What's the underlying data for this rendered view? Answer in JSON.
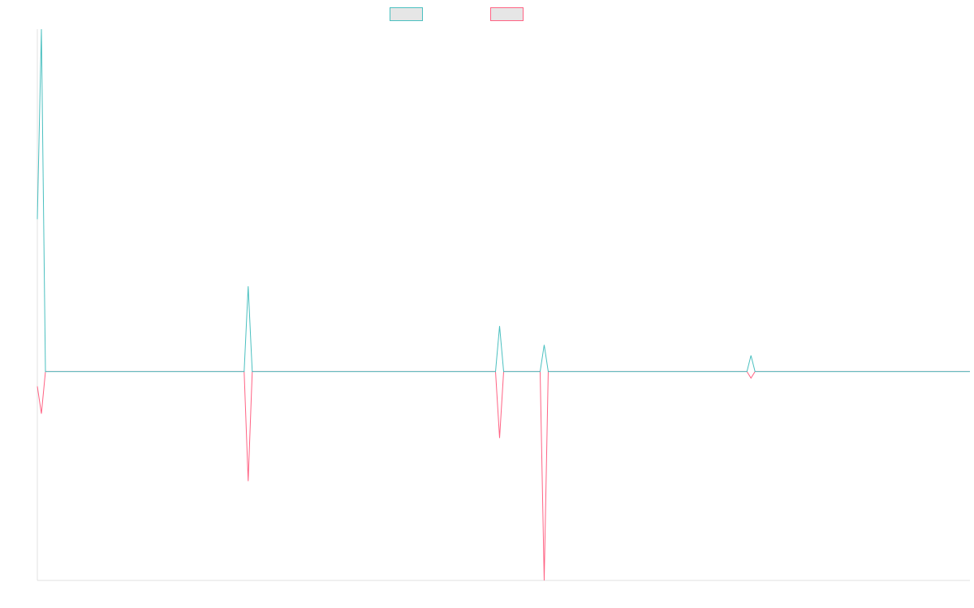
{
  "chart_data": {
    "type": "line",
    "ylim": [
      -0.61,
      1
    ],
    "series": [
      {
        "color": "#4bc0c0",
        "values": [
          0.445,
          1,
          0,
          0,
          0,
          0,
          0,
          0,
          0,
          0,
          0,
          0,
          0,
          0,
          0,
          0,
          0,
          0,
          0,
          0,
          0,
          0,
          0,
          0,
          0,
          0,
          0,
          0,
          0,
          0,
          0,
          0,
          0,
          0,
          0,
          0,
          0,
          0,
          0,
          0,
          0,
          0,
          0,
          0,
          0,
          0,
          0,
          0,
          0,
          0,
          0,
          0,
          0.249,
          0,
          0,
          0,
          0,
          0,
          0,
          0,
          0,
          0,
          0,
          0,
          0,
          0,
          0,
          0,
          0,
          0,
          0,
          0,
          0,
          0,
          0,
          0,
          0,
          0,
          0,
          0,
          0,
          0,
          0,
          0,
          0,
          0,
          0,
          0,
          0,
          0,
          0,
          0,
          0,
          0,
          0,
          0,
          0,
          0,
          0,
          0,
          0,
          0,
          0,
          0,
          0,
          0,
          0,
          0,
          0,
          0,
          0,
          0,
          0,
          0,
          0.133,
          0,
          0,
          0,
          0,
          0,
          0,
          0,
          0,
          0,
          0,
          0.078,
          0,
          0,
          0,
          0,
          0,
          0,
          0,
          0,
          0,
          0,
          0,
          0,
          0,
          0,
          0,
          0,
          0,
          0,
          0,
          0,
          0,
          0,
          0,
          0,
          0,
          0,
          0,
          0,
          0,
          0,
          0,
          0,
          0,
          0,
          0,
          0,
          0,
          0,
          0,
          0,
          0,
          0,
          0,
          0,
          0,
          0,
          0,
          0,
          0,
          0,
          0.047,
          0,
          0,
          0,
          0,
          0,
          0,
          0,
          0,
          0,
          0,
          0,
          0,
          0,
          0,
          0,
          0,
          0,
          0,
          0,
          0,
          0,
          0,
          0,
          0,
          0,
          0,
          0,
          0,
          0,
          0,
          0,
          0,
          0,
          0,
          0,
          0,
          0,
          0,
          0,
          0,
          0,
          0,
          0,
          0,
          0,
          0,
          0,
          0,
          0,
          0,
          0,
          0,
          0,
          0
        ]
      },
      {
        "color": "#ff6384",
        "values": [
          -0.043,
          -0.123,
          0,
          0,
          0,
          0,
          0,
          0,
          0,
          0,
          0,
          0,
          0,
          0,
          0,
          0,
          0,
          0,
          0,
          0,
          0,
          0,
          0,
          0,
          0,
          0,
          0,
          0,
          0,
          0,
          0,
          0,
          0,
          0,
          0,
          0,
          0,
          0,
          0,
          0,
          0,
          0,
          0,
          0,
          0,
          0,
          0,
          0,
          0,
          0,
          0,
          0,
          -0.32,
          0,
          0,
          0,
          0,
          0,
          0,
          0,
          0,
          0,
          0,
          0,
          0,
          0,
          0,
          0,
          0,
          0,
          0,
          0,
          0,
          0,
          0,
          0,
          0,
          0,
          0,
          0,
          0,
          0,
          0,
          0,
          0,
          0,
          0,
          0,
          0,
          0,
          0,
          0,
          0,
          0,
          0,
          0,
          0,
          0,
          0,
          0,
          0,
          0,
          0,
          0,
          0,
          0,
          0,
          0,
          0,
          0,
          0,
          0,
          0,
          0,
          -0.194,
          0,
          0,
          0,
          0,
          0,
          0,
          0,
          0,
          0,
          0,
          -0.61,
          0,
          0,
          0,
          0,
          0,
          0,
          0,
          0,
          0,
          0,
          0,
          0,
          0,
          0,
          0,
          0,
          0,
          0,
          0,
          0,
          0,
          0,
          0,
          0,
          0,
          0,
          0,
          0,
          0,
          0,
          0,
          0,
          0,
          0,
          0,
          0,
          0,
          0,
          0,
          0,
          0,
          0,
          0,
          0,
          0,
          0,
          0,
          0,
          0,
          0,
          -0.019,
          0,
          0,
          0,
          0,
          0,
          0,
          0,
          0,
          0,
          0,
          0,
          0,
          0,
          0,
          0,
          0,
          0,
          0,
          0,
          0,
          0,
          0,
          0,
          0,
          0,
          0,
          0,
          0,
          0,
          0,
          0,
          0,
          0,
          0,
          0,
          0,
          0,
          0,
          0,
          0,
          0,
          0,
          0,
          0,
          0,
          0,
          0,
          0,
          0,
          0,
          0,
          0,
          0,
          0
        ]
      }
    ]
  }
}
